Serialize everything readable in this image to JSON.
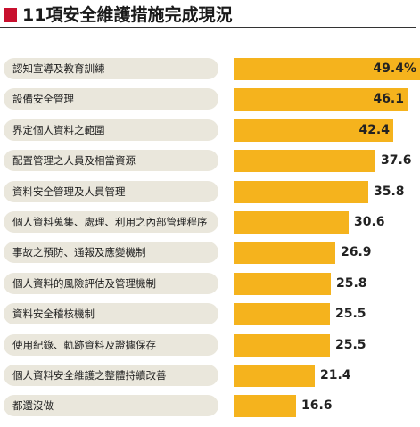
{
  "header": {
    "title": "11項安全維護措施完成現況"
  },
  "colors": {
    "accent_marker": "#c8102e",
    "bar": "#f5b31d",
    "label_pill": "#eae7dc"
  },
  "chart_data": {
    "type": "bar",
    "orientation": "horizontal",
    "title": "11項安全維護措施完成現況",
    "categories": [
      "認知宣導及教育訓練",
      "設備安全管理",
      "界定個人資料之範圍",
      "配置管理之人員及相當資源",
      "資料安全管理及人員管理",
      "個人資料蒐集、處理、利用之內部管理程序",
      "事故之預防、通報及應變機制",
      "個人資料的風險評估及管理機制",
      "資料安全稽核機制",
      "使用紀錄、軌跡資料及證據保存",
      "個人資料安全維護之整體持續改善",
      "都還沒做"
    ],
    "values": [
      49.4,
      46.1,
      42.4,
      37.6,
      35.8,
      30.6,
      26.9,
      25.8,
      25.5,
      25.5,
      21.4,
      16.6
    ],
    "value_labels": [
      "49.4%",
      "46.1",
      "42.4",
      "37.6",
      "35.8",
      "30.6",
      "26.9",
      "25.8",
      "25.5",
      "25.5",
      "21.4",
      "16.6"
    ],
    "xlim": [
      0,
      49.4
    ],
    "grid": false,
    "legend": "none"
  }
}
